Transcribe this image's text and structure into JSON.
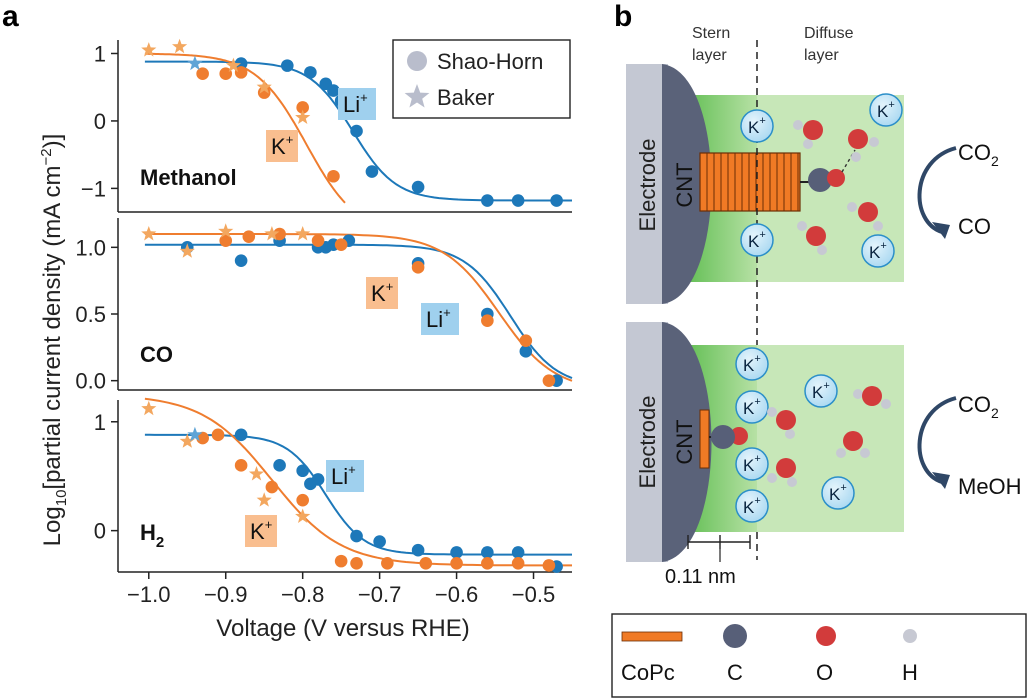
{
  "figure": {
    "panel_a": "a",
    "panel_b": "b"
  },
  "colors": {
    "li": "#1d78b9",
    "k": "#ef7d2f",
    "k_star": "#f3a75f",
    "li_star": "#5fa4d6",
    "stern": "#7fcb6a",
    "diffuse": "#c7e7b8",
    "electrode": "#c4c8d3",
    "cnt": "#5a6279",
    "cnt_dark": "#3f4760",
    "copc": "#f07a25",
    "carbon": "#575f78",
    "oxygen": "#d23b3b",
    "hydrogen": "#c7c9d3",
    "ion_fill": "#bfe3f7",
    "ion_stroke": "#2b8fc9"
  },
  "chart_data": [
    {
      "type": "scatter",
      "name": "Methanol",
      "panel_label": "Methanol",
      "xlabel": "Voltage (V versus RHE)",
      "ylabel": "Log10[partial current density (mA cm−2)]",
      "xlim": [
        -1.04,
        -0.45
      ],
      "ylim": [
        -1.35,
        1.2
      ],
      "yticks": [
        1,
        0,
        -1
      ],
      "ytick_labels": [
        "1",
        "0",
        "−1"
      ],
      "series": [
        {
          "name": "Shao-Horn",
          "ion": "Li+",
          "marker": "circle",
          "color": "#1d78b9",
          "x": [
            -0.88,
            -0.82,
            -0.79,
            -0.77,
            -0.76,
            -0.75,
            -0.73,
            -0.71,
            -0.65,
            -0.56,
            -0.52,
            -0.47
          ],
          "y": [
            0.85,
            0.82,
            0.72,
            0.55,
            0.45,
            0.3,
            -0.15,
            -0.75,
            -0.98,
            -1.18,
            -1.18,
            -1.18
          ]
        },
        {
          "name": "Shao-Horn",
          "ion": "K+",
          "marker": "circle",
          "color": "#ef7d2f",
          "x": [
            -0.93,
            -0.9,
            -0.88,
            -0.85,
            -0.8,
            -0.76
          ],
          "y": [
            0.7,
            0.7,
            0.72,
            0.42,
            0.2,
            -0.82
          ]
        },
        {
          "name": "Baker",
          "ion": "K+",
          "marker": "star",
          "color": "#f3a75f",
          "x": [
            -1.0,
            -0.96,
            -0.89,
            -0.85,
            -0.8
          ],
          "y": [
            1.05,
            1.1,
            0.82,
            0.5,
            0.05
          ]
        },
        {
          "name": "Baker",
          "ion": "Li+",
          "marker": "star",
          "color": "#5fa4d6",
          "x": [
            -0.94
          ],
          "y": [
            0.85
          ]
        }
      ],
      "fits": [
        {
          "ion": "Li+",
          "color": "#1d78b9",
          "top": 0.88,
          "bottom": -1.18,
          "mid": -0.735,
          "width": 0.028
        },
        {
          "ion": "K+",
          "color": "#ef7d2f",
          "top": 1.0,
          "bottom": -1.7,
          "mid": -0.795,
          "width": 0.033,
          "x_end": -0.745
        }
      ],
      "badges": [
        {
          "label": "Li",
          "sup": "+",
          "color": "#1d78b9"
        },
        {
          "label": "K",
          "sup": "+",
          "color": "#ef7d2f"
        }
      ]
    },
    {
      "type": "scatter",
      "name": "CO",
      "panel_label": "CO",
      "xlim": [
        -1.04,
        -0.45
      ],
      "ylim": [
        -0.07,
        1.22
      ],
      "yticks": [
        1.0,
        0.5,
        0.0
      ],
      "ytick_labels": [
        "1.0",
        "0.5",
        "0.0"
      ],
      "series": [
        {
          "name": "Shao-Horn",
          "ion": "Li+",
          "marker": "circle",
          "color": "#1d78b9",
          "x": [
            -0.95,
            -0.88,
            -0.83,
            -0.78,
            -0.77,
            -0.76,
            -0.74,
            -0.65,
            -0.56,
            -0.51,
            -0.47
          ],
          "y": [
            1.0,
            0.9,
            1.05,
            1.0,
            1.0,
            1.02,
            1.05,
            0.88,
            0.5,
            0.22,
            0.0
          ]
        },
        {
          "name": "Shao-Horn",
          "ion": "K+",
          "marker": "circle",
          "color": "#ef7d2f",
          "x": [
            -0.9,
            -0.87,
            -0.83,
            -0.78,
            -0.75,
            -0.65,
            -0.56,
            -0.51,
            -0.48
          ],
          "y": [
            1.05,
            1.08,
            1.1,
            1.05,
            1.02,
            0.85,
            0.45,
            0.3,
            0.0
          ]
        },
        {
          "name": "Baker",
          "ion": "K+",
          "marker": "star",
          "color": "#f3a75f",
          "x": [
            -1.0,
            -0.95,
            -0.9,
            -0.84,
            -0.8
          ],
          "y": [
            1.1,
            0.97,
            1.12,
            1.1,
            1.1
          ]
        }
      ],
      "fits": [
        {
          "ion": "Li+",
          "color": "#1d78b9",
          "top": 1.02,
          "bottom": -0.05,
          "mid": -0.53,
          "width": 0.03
        },
        {
          "ion": "K+",
          "color": "#ef7d2f",
          "top": 1.1,
          "bottom": -0.08,
          "mid": -0.545,
          "width": 0.036
        }
      ],
      "badges": [
        {
          "label": "K",
          "sup": "+",
          "color": "#ef7d2f"
        },
        {
          "label": "Li",
          "sup": "+",
          "color": "#1d78b9"
        }
      ]
    },
    {
      "type": "scatter",
      "name": "H2",
      "panel_label": "H",
      "panel_label_sub": "2",
      "xlim": [
        -1.04,
        -0.45
      ],
      "ylim": [
        -0.38,
        1.2
      ],
      "yticks": [
        1,
        0
      ],
      "ytick_labels": [
        "1",
        "0"
      ],
      "xticks": [
        -1.0,
        -0.9,
        -0.8,
        -0.7,
        -0.6,
        -0.5
      ],
      "xtick_labels": [
        "−1.0",
        "−0.9",
        "−0.8",
        "−0.7",
        "−0.6",
        "−0.5"
      ],
      "series": [
        {
          "name": "Shao-Horn",
          "ion": "Li+",
          "marker": "circle",
          "color": "#1d78b9",
          "x": [
            -0.88,
            -0.83,
            -0.8,
            -0.79,
            -0.78,
            -0.73,
            -0.7,
            -0.65,
            -0.6,
            -0.56,
            -0.52,
            -0.47
          ],
          "y": [
            0.88,
            0.6,
            0.55,
            0.43,
            0.47,
            -0.05,
            -0.1,
            -0.18,
            -0.2,
            -0.2,
            -0.2,
            -0.33
          ]
        },
        {
          "name": "Shao-Horn",
          "ion": "K+",
          "marker": "circle",
          "color": "#ef7d2f",
          "x": [
            -0.93,
            -0.91,
            -0.88,
            -0.84,
            -0.8,
            -0.75,
            -0.73,
            -0.69,
            -0.64,
            -0.6,
            -0.56,
            -0.52,
            -0.48
          ],
          "y": [
            0.85,
            0.88,
            0.6,
            0.4,
            0.28,
            -0.28,
            -0.3,
            -0.3,
            -0.3,
            -0.3,
            -0.3,
            -0.3,
            -0.32
          ]
        },
        {
          "name": "Baker",
          "ion": "K+",
          "marker": "star",
          "color": "#f3a75f",
          "x": [
            -1.0,
            -0.95,
            -0.86,
            -0.85,
            -0.8
          ],
          "y": [
            1.12,
            0.82,
            0.52,
            0.28,
            0.13
          ]
        },
        {
          "name": "Baker",
          "ion": "Li+",
          "marker": "star",
          "color": "#5fa4d6",
          "x": [
            -0.94
          ],
          "y": [
            0.88
          ]
        }
      ],
      "fits": [
        {
          "ion": "Li+",
          "color": "#1d78b9",
          "top": 0.88,
          "bottom": -0.22,
          "mid": -0.77,
          "width": 0.025
        },
        {
          "ion": "K+",
          "color": "#ef7d2f",
          "top": 1.25,
          "bottom": -0.32,
          "mid": -0.84,
          "width": 0.045
        }
      ],
      "badges": [
        {
          "label": "Li",
          "sup": "+",
          "color": "#1d78b9"
        },
        {
          "label": "K",
          "sup": "+",
          "color": "#ef7d2f"
        }
      ]
    }
  ],
  "legend": [
    {
      "label": "Shao-Horn",
      "marker": "circle"
    },
    {
      "label": "Baker",
      "marker": "star"
    }
  ],
  "axis": {
    "ylabel_pre": "Log",
    "ylabel_sub": "10",
    "ylabel_mid": "[partial current density (mA cm",
    "ylabel_sup": "−2",
    "ylabel_post": ")]",
    "xlabel": "Voltage (V versus RHE)"
  },
  "diagram": {
    "stern_label_1": "Stern",
    "stern_label_2": "layer",
    "diffuse_label_1": "Diffuse",
    "diffuse_label_2": "layer",
    "electrode": "Electrode",
    "cnt": "CNT",
    "ion": "K",
    "ion_sup": "+",
    "co2": "CO",
    "co2_sub": "2",
    "product_top": "CO",
    "product_bottom": "MeOH",
    "distance": "0.11 nm"
  },
  "diagram_legend": [
    {
      "label": "CoPc",
      "symbol": "bar"
    },
    {
      "label": "C",
      "symbol": "carbon"
    },
    {
      "label": "O",
      "symbol": "oxygen"
    },
    {
      "label": "H",
      "symbol": "hydrogen"
    }
  ]
}
